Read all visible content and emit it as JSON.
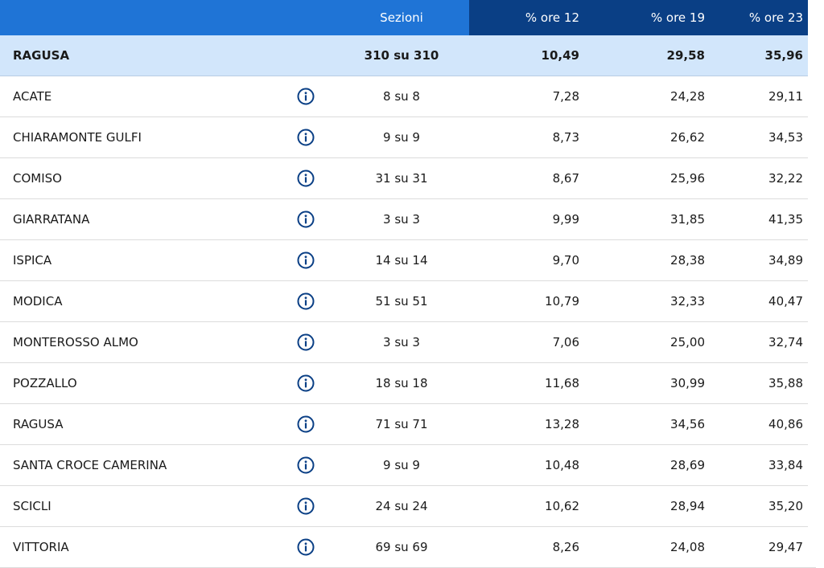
{
  "header": {
    "name": "",
    "sezioni": "Sezioni",
    "p12": "% ore 12",
    "p19": "% ore 19",
    "p23": "% ore 23"
  },
  "total": {
    "name": "RAGUSA",
    "sezioni": "310 su 310",
    "p12": "10,49",
    "p19": "29,58",
    "p23": "35,96"
  },
  "rows": [
    {
      "name": "ACATE",
      "sezioni": "8 su 8",
      "p12": "7,28",
      "p19": "24,28",
      "p23": "29,11"
    },
    {
      "name": "CHIARAMONTE GULFI",
      "sezioni": "9 su 9",
      "p12": "8,73",
      "p19": "26,62",
      "p23": "34,53"
    },
    {
      "name": "COMISO",
      "sezioni": "31 su 31",
      "p12": "8,67",
      "p19": "25,96",
      "p23": "32,22"
    },
    {
      "name": "GIARRATANA",
      "sezioni": "3 su 3",
      "p12": "9,99",
      "p19": "31,85",
      "p23": "41,35"
    },
    {
      "name": "ISPICA",
      "sezioni": "14 su 14",
      "p12": "9,70",
      "p19": "28,38",
      "p23": "34,89"
    },
    {
      "name": "MODICA",
      "sezioni": "51 su 51",
      "p12": "10,79",
      "p19": "32,33",
      "p23": "40,47"
    },
    {
      "name": "MONTEROSSO ALMO",
      "sezioni": "3 su 3",
      "p12": "7,06",
      "p19": "25,00",
      "p23": "32,74"
    },
    {
      "name": "POZZALLO",
      "sezioni": "18 su 18",
      "p12": "11,68",
      "p19": "30,99",
      "p23": "35,88"
    },
    {
      "name": "RAGUSA",
      "sezioni": "71 su 71",
      "p12": "13,28",
      "p19": "34,56",
      "p23": "40,86"
    },
    {
      "name": "SANTA CROCE CAMERINA",
      "sezioni": "9 su 9",
      "p12": "10,48",
      "p19": "28,69",
      "p23": "33,84"
    },
    {
      "name": "SCICLI",
      "sezioni": "24 su 24",
      "p12": "10,62",
      "p19": "28,94",
      "p23": "35,20"
    },
    {
      "name": "VITTORIA",
      "sezioni": "69 su 69",
      "p12": "8,26",
      "p19": "24,08",
      "p23": "29,47"
    }
  ],
  "icons": {
    "info": "info-icon"
  },
  "colors": {
    "header_light": "#1f74d6",
    "header_dark": "#0a3f85",
    "total_bg": "#d2e6fb",
    "icon": "#0a3f85"
  }
}
